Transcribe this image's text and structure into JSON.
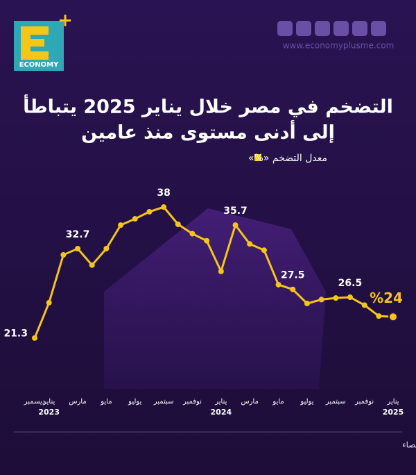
{
  "logo": "ECONOMY",
  "website": "www.economyplusme.com",
  "source": "المصدر: الجهاز المركزي للتعبئة العامة والإحصاء",
  "chart_data": {
    "type": "line",
    "title": [
      "التضخم في مصر خلال يناير 2025  يتباطأ",
      "إلى أدنى مستوى منذ عامين"
    ],
    "categories": [
      "ديسمبر",
      "يناير",
      null,
      "مارس",
      null,
      "مايو",
      null,
      "يوليو",
      null,
      "سبتمبر",
      null,
      "نوفمبر",
      null,
      "يناير",
      null,
      "مارس",
      null,
      "مايو",
      null,
      "يوليو",
      null,
      "سبتمبر",
      null,
      "نوفمبر",
      null,
      "يناير"
    ],
    "year_labels": [
      null,
      "2023",
      null,
      null,
      null,
      null,
      null,
      null,
      null,
      null,
      null,
      null,
      null,
      "2024",
      null,
      null,
      null,
      null,
      null,
      null,
      null,
      null,
      null,
      null,
      null,
      "2025"
    ],
    "series": [
      {
        "name": "معدل التضخم «%»",
        "color": "#f5c518",
        "values": [
          21.3,
          25.8,
          31.9,
          32.7,
          30.6,
          32.7,
          35.7,
          36.5,
          37.4,
          38,
          35.8,
          34.6,
          33.7,
          29.8,
          35.7,
          33.3,
          32.5,
          28.1,
          27.5,
          25.7,
          26.2,
          26.4,
          26.5,
          25.5,
          24.1,
          24
        ],
        "value_labels": [
          "21.3",
          null,
          null,
          "32.7",
          null,
          null,
          null,
          null,
          null,
          "38",
          null,
          null,
          null,
          null,
          "35.7",
          null,
          null,
          null,
          "27.5",
          null,
          null,
          null,
          "26.5",
          null,
          null,
          "%24"
        ]
      }
    ],
    "ylim": [
      18,
      42
    ]
  }
}
